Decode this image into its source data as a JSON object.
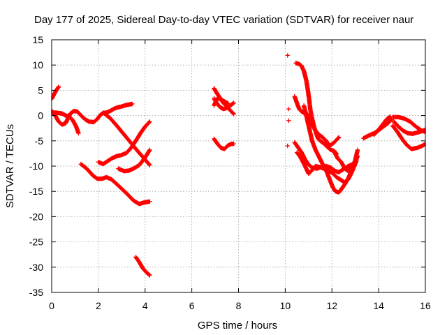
{
  "chart_data": {
    "type": "scatter",
    "title": "Day 177 of 2025, Sidereal Day-to-day VTEC variation (SDTVAR) for receiver naur",
    "xlabel": "GPS time / hours",
    "ylabel": "SDTVAR / TECUs",
    "xlim": [
      0,
      16
    ],
    "ylim": [
      -35,
      15
    ],
    "x_ticks": [
      0,
      2,
      4,
      6,
      8,
      10,
      12,
      14,
      16
    ],
    "y_ticks": [
      15,
      10,
      5,
      0,
      -5,
      -10,
      -15,
      -20,
      -25,
      -30,
      -35
    ],
    "x_tick_labels": [
      "0",
      "2",
      "4",
      "6",
      "8",
      "10",
      "12",
      "14",
      "16"
    ],
    "y_tick_labels": [
      "15",
      "10",
      "5",
      "0",
      "-5",
      "-10",
      "-15",
      "-20",
      "-25",
      "-30",
      "-35"
    ],
    "grid": true,
    "legend": "none",
    "marker": "plus",
    "color": "#ff0000",
    "traces": [
      [
        [
          0.0,
          3.3
        ],
        [
          0.1,
          4.2
        ],
        [
          0.2,
          5.0
        ],
        [
          0.3,
          5.7
        ]
      ],
      [
        [
          0.0,
          0.9
        ],
        [
          0.1,
          0.5
        ],
        [
          0.2,
          -0.4
        ],
        [
          0.3,
          -1.2
        ],
        [
          0.45,
          -1.8
        ],
        [
          0.6,
          -1.5
        ],
        [
          0.7,
          -0.5
        ],
        [
          0.8,
          0.4
        ],
        [
          0.95,
          0.9
        ],
        [
          1.1,
          0.8
        ],
        [
          1.2,
          0.3
        ],
        [
          1.3,
          -0.2
        ],
        [
          1.45,
          -0.8
        ],
        [
          1.6,
          -1.2
        ],
        [
          1.8,
          -1.3
        ],
        [
          1.95,
          -0.7
        ],
        [
          2.1,
          0.2
        ],
        [
          2.2,
          0.5
        ],
        [
          2.35,
          0.6
        ],
        [
          2.5,
          0.9
        ],
        [
          2.65,
          1.3
        ],
        [
          2.8,
          1.6
        ],
        [
          3.0,
          1.8
        ],
        [
          3.2,
          2.1
        ],
        [
          3.45,
          2.3
        ]
      ],
      [
        [
          0.0,
          0.5
        ],
        [
          0.15,
          0.6
        ],
        [
          0.3,
          0.5
        ],
        [
          0.45,
          0.4
        ],
        [
          0.6,
          0.0
        ],
        [
          0.75,
          -0.2
        ],
        [
          0.9,
          -0.9
        ],
        [
          1.05,
          -2.2
        ],
        [
          1.15,
          -3.5
        ]
      ],
      [
        [
          2.2,
          0.6
        ],
        [
          2.5,
          -0.5
        ],
        [
          2.75,
          -1.8
        ],
        [
          3.0,
          -3.2
        ],
        [
          3.25,
          -4.6
        ],
        [
          3.5,
          -6.0
        ],
        [
          3.75,
          -7.4
        ],
        [
          4.0,
          -8.7
        ],
        [
          4.2,
          -9.8
        ]
      ],
      [
        [
          1.25,
          -9.6
        ],
        [
          1.5,
          -10.5
        ],
        [
          1.75,
          -11.8
        ],
        [
          1.95,
          -12.5
        ],
        [
          2.15,
          -12.5
        ],
        [
          2.35,
          -12.2
        ],
        [
          2.55,
          -12.6
        ],
        [
          2.75,
          -13.4
        ],
        [
          3.0,
          -14.5
        ],
        [
          3.25,
          -15.6
        ],
        [
          3.5,
          -16.8
        ],
        [
          3.75,
          -17.5
        ],
        [
          3.95,
          -17.2
        ],
        [
          4.2,
          -17.0
        ]
      ],
      [
        [
          2.0,
          -9.2
        ],
        [
          2.2,
          -9.6
        ],
        [
          2.4,
          -9.0
        ],
        [
          2.6,
          -8.4
        ],
        [
          2.8,
          -8.0
        ],
        [
          3.0,
          -7.8
        ],
        [
          3.2,
          -7.4
        ],
        [
          3.4,
          -6.4
        ],
        [
          3.6,
          -5.0
        ],
        [
          3.8,
          -3.5
        ],
        [
          4.0,
          -2.2
        ],
        [
          4.2,
          -1.2
        ]
      ],
      [
        [
          2.85,
          -10.5
        ],
        [
          3.1,
          -11.0
        ],
        [
          3.3,
          -10.9
        ],
        [
          3.5,
          -10.5
        ],
        [
          3.75,
          -9.8
        ],
        [
          4.0,
          -8.3
        ],
        [
          4.2,
          -6.8
        ]
      ],
      [
        [
          3.6,
          -28.0
        ],
        [
          3.75,
          -29.0
        ],
        [
          3.9,
          -30.2
        ],
        [
          4.05,
          -31.0
        ],
        [
          4.2,
          -31.6
        ]
      ],
      [
        [
          6.95,
          5.4
        ],
        [
          7.05,
          4.6
        ],
        [
          7.15,
          3.9
        ],
        [
          7.25,
          3.2
        ],
        [
          7.35,
          2.5
        ],
        [
          7.5,
          1.8
        ],
        [
          7.65,
          1.0
        ],
        [
          7.8,
          0.3
        ]
      ],
      [
        [
          6.95,
          3.4
        ],
        [
          7.05,
          2.6
        ],
        [
          7.2,
          1.7
        ],
        [
          7.35,
          1.3
        ],
        [
          7.5,
          1.5
        ],
        [
          7.65,
          2.0
        ],
        [
          7.8,
          2.5
        ]
      ],
      [
        [
          6.95,
          2.0
        ],
        [
          7.1,
          3.5
        ],
        [
          7.25,
          3.2
        ],
        [
          7.4,
          2.8
        ],
        [
          7.55,
          2.4
        ]
      ],
      [
        [
          6.95,
          -4.6
        ],
        [
          7.1,
          -5.6
        ],
        [
          7.25,
          -6.4
        ],
        [
          7.4,
          -6.6
        ],
        [
          7.55,
          -5.9
        ],
        [
          7.7,
          -5.6
        ],
        [
          7.8,
          -5.6
        ]
      ],
      [
        [
          10.1,
          11.9
        ]
      ],
      [
        [
          10.15,
          1.3
        ]
      ],
      [
        [
          10.15,
          -1.0
        ]
      ],
      [
        [
          10.1,
          -6.0
        ]
      ],
      [
        [
          10.45,
          10.4
        ],
        [
          10.6,
          10.2
        ],
        [
          10.7,
          9.8
        ],
        [
          10.8,
          8.8
        ],
        [
          10.9,
          7.0
        ],
        [
          10.97,
          5.0
        ],
        [
          11.03,
          3.0
        ],
        [
          11.08,
          1.0
        ],
        [
          11.15,
          -0.5
        ],
        [
          11.25,
          -2.5
        ],
        [
          11.4,
          -4.5
        ],
        [
          11.5,
          -5.0
        ],
        [
          11.65,
          -5.5
        ],
        [
          11.8,
          -6.2
        ],
        [
          11.95,
          -6.8
        ],
        [
          12.1,
          -7.0
        ],
        [
          12.2,
          -7.6
        ]
      ],
      [
        [
          10.4,
          3.8
        ],
        [
          10.5,
          2.5
        ],
        [
          10.6,
          1.3
        ],
        [
          10.7,
          0.8
        ],
        [
          10.82,
          0.5
        ],
        [
          10.95,
          0.3
        ],
        [
          11.05,
          -0.5
        ],
        [
          11.15,
          -1.8
        ],
        [
          11.3,
          -3.0
        ],
        [
          11.45,
          -3.8
        ],
        [
          11.6,
          -4.3
        ],
        [
          11.75,
          -5.0
        ],
        [
          11.9,
          -6.0
        ],
        [
          12.05,
          -5.5
        ],
        [
          12.2,
          -4.8
        ],
        [
          12.3,
          -4.3
        ]
      ],
      [
        [
          10.4,
          -5.3
        ],
        [
          10.55,
          -6.3
        ],
        [
          10.7,
          -7.3
        ],
        [
          10.85,
          -8.7
        ],
        [
          11.0,
          -9.7
        ],
        [
          11.15,
          -10.3
        ],
        [
          11.35,
          -10.5
        ],
        [
          11.55,
          -10.2
        ],
        [
          11.75,
          -10.0
        ],
        [
          11.95,
          -10.3
        ],
        [
          12.15,
          -11.0
        ],
        [
          12.3,
          -11.2
        ],
        [
          12.5,
          -10.6
        ],
        [
          12.7,
          -10.0
        ],
        [
          12.9,
          -9.6
        ],
        [
          13.05,
          -8.6
        ]
      ],
      [
        [
          10.5,
          -7.3
        ],
        [
          10.65,
          -8.2
        ],
        [
          10.85,
          -10.0
        ],
        [
          11.0,
          -11.5
        ],
        [
          11.15,
          -10.8
        ],
        [
          11.3,
          -10.0
        ],
        [
          11.5,
          -10.2
        ],
        [
          11.7,
          -10.6
        ],
        [
          11.9,
          -11.0
        ],
        [
          12.05,
          -11.5
        ],
        [
          12.2,
          -12.2
        ],
        [
          12.4,
          -12.8
        ],
        [
          12.55,
          -13.2
        ],
        [
          12.7,
          -12.6
        ],
        [
          12.85,
          -11.2
        ],
        [
          13.05,
          -9.0
        ]
      ],
      [
        [
          11.75,
          -10.8
        ],
        [
          11.85,
          -12.0
        ],
        [
          11.95,
          -13.2
        ],
        [
          12.05,
          -14.3
        ],
        [
          12.15,
          -15.0
        ],
        [
          12.3,
          -15.2
        ],
        [
          12.4,
          -14.6
        ],
        [
          12.55,
          -13.6
        ],
        [
          12.7,
          -12.4
        ],
        [
          12.85,
          -10.8
        ],
        [
          13.0,
          -8.8
        ],
        [
          13.1,
          -6.8
        ]
      ],
      [
        [
          12.1,
          -7.2
        ],
        [
          12.25,
          -8.5
        ],
        [
          12.4,
          -9.2
        ],
        [
          12.55,
          -10.5
        ],
        [
          12.7,
          -11.0
        ],
        [
          12.85,
          -10.2
        ],
        [
          13.0,
          -9.2
        ],
        [
          13.1,
          -8.0
        ]
      ],
      [
        [
          10.8,
          2.0
        ],
        [
          10.95,
          -1.0
        ],
        [
          11.05,
          -3.0
        ],
        [
          11.15,
          -5.0
        ],
        [
          11.3,
          -6.8
        ],
        [
          11.45,
          -8.2
        ],
        [
          11.6,
          -9.6
        ],
        [
          11.75,
          -10.5
        ]
      ],
      [
        [
          13.35,
          -4.5
        ],
        [
          13.55,
          -4.0
        ],
        [
          13.8,
          -3.5
        ],
        [
          14.0,
          -2.9
        ],
        [
          14.2,
          -2.2
        ],
        [
          14.4,
          -1.5
        ],
        [
          14.55,
          -0.8
        ]
      ],
      [
        [
          13.8,
          -3.8
        ],
        [
          14.0,
          -2.8
        ],
        [
          14.2,
          -1.6
        ],
        [
          14.35,
          -0.7
        ],
        [
          14.5,
          -0.2
        ]
      ],
      [
        [
          14.6,
          -0.3
        ],
        [
          14.85,
          -0.3
        ],
        [
          15.1,
          -0.6
        ],
        [
          15.35,
          -1.2
        ],
        [
          15.6,
          -2.2
        ],
        [
          15.85,
          -3.0
        ],
        [
          16.0,
          -3.2
        ]
      ],
      [
        [
          14.6,
          -2.0
        ],
        [
          14.8,
          -3.2
        ],
        [
          15.0,
          -4.6
        ],
        [
          15.2,
          -5.8
        ],
        [
          15.4,
          -6.6
        ],
        [
          15.65,
          -6.4
        ],
        [
          15.9,
          -5.9
        ],
        [
          16.0,
          -5.6
        ]
      ],
      [
        [
          14.65,
          -1.2
        ],
        [
          14.85,
          -2.2
        ],
        [
          15.05,
          -3.0
        ],
        [
          15.25,
          -3.5
        ],
        [
          15.45,
          -3.6
        ],
        [
          15.7,
          -3.3
        ],
        [
          15.9,
          -3.0
        ],
        [
          16.0,
          -2.8
        ]
      ]
    ]
  }
}
